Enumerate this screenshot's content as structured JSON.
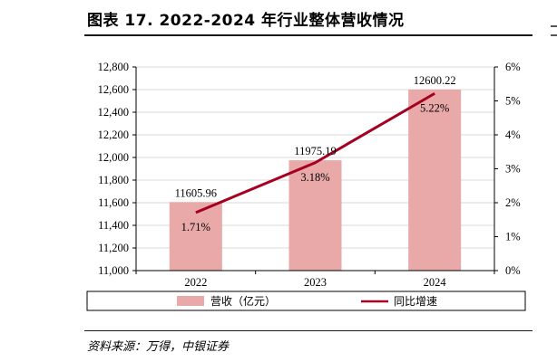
{
  "title": "图表 17. 2022-2024 年行业整体营收情况",
  "source": "资料来源：万得，中银证券",
  "chart_data": {
    "type": "bar+line",
    "categories": [
      "2022",
      "2023",
      "2024"
    ],
    "series": [
      {
        "name": "营收（亿元）",
        "type": "bar",
        "axis": "left",
        "values": [
          11605.96,
          11975.19,
          12600.22
        ],
        "labels": [
          "11605.96",
          "11975.19",
          "12600.22"
        ],
        "color": "#e8a9a8"
      },
      {
        "name": "同比增速",
        "type": "line",
        "axis": "right",
        "values": [
          1.71,
          3.18,
          5.22
        ],
        "labels": [
          "1.71%",
          "3.18%",
          "5.22%"
        ],
        "color": "#a50021"
      }
    ],
    "y_left": {
      "ylim": [
        11000,
        12800
      ],
      "ticks": [
        11000,
        11200,
        11400,
        11600,
        11800,
        12000,
        12200,
        12400,
        12600,
        12800
      ],
      "tick_labels": [
        "11,000",
        "11,200",
        "11,400",
        "11,600",
        "11,800",
        "12,000",
        "12,200",
        "12,400",
        "12,600",
        "12,800"
      ]
    },
    "y_right": {
      "ylim": [
        0,
        6
      ],
      "ticks": [
        0,
        1,
        2,
        3,
        4,
        5,
        6
      ],
      "tick_labels": [
        "0%",
        "1%",
        "2%",
        "3%",
        "4%",
        "5%",
        "6%"
      ]
    },
    "grid": true,
    "legend": "bottom"
  }
}
